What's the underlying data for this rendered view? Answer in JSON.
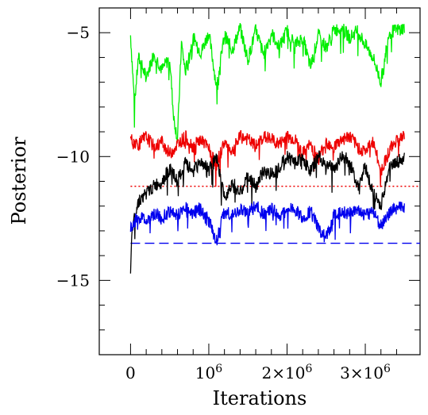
{
  "chart_data": {
    "type": "line",
    "xlabel": "Iterations",
    "ylabel": "Posterior",
    "xlim": [
      -400000,
      3700000
    ],
    "ylim": [
      -18,
      -4
    ],
    "x_ticks": [
      {
        "value": 0,
        "label": "0"
      },
      {
        "value": 1000000,
        "base": "10",
        "exp": "6"
      },
      {
        "value": 2000000,
        "base": "2×10",
        "exp": "6"
      },
      {
        "value": 3000000,
        "base": "3×10",
        "exp": "6"
      }
    ],
    "y_ticks": [
      {
        "value": -5,
        "label": "−5"
      },
      {
        "value": -10,
        "label": "−10"
      },
      {
        "value": -15,
        "label": "−15"
      }
    ],
    "series": [
      {
        "color": "#00ee00",
        "x": [
          0,
          50000,
          100000,
          200000,
          300000,
          400000,
          500000,
          550000,
          600000,
          650000,
          700000,
          800000,
          900000,
          1000000,
          1100000,
          1200000,
          1300000,
          1400000,
          1500000,
          1600000,
          1700000,
          1800000,
          1900000,
          2000000,
          2100000,
          2200000,
          2300000,
          2400000,
          2500000,
          2600000,
          2700000,
          2800000,
          2900000,
          3000000,
          3100000,
          3200000,
          3300000,
          3400000,
          3500000
        ],
        "y": [
          -5.1,
          -7.9,
          -6.0,
          -6.8,
          -5.8,
          -6.5,
          -6.0,
          -8.4,
          -9.3,
          -5.4,
          -6.6,
          -5.2,
          -5.8,
          -5.0,
          -7.2,
          -5.1,
          -5.7,
          -4.8,
          -6.1,
          -4.9,
          -5.9,
          -5.0,
          -5.6,
          -4.9,
          -5.5,
          -5.2,
          -6.4,
          -5.1,
          -5.6,
          -4.9,
          -4.8,
          -5.2,
          -4.9,
          -5.5,
          -6.0,
          -7.0,
          -5.0,
          -4.9,
          -4.8
        ]
      },
      {
        "color": "#ee0000",
        "x": [
          0,
          100000,
          200000,
          300000,
          400000,
          500000,
          600000,
          700000,
          800000,
          900000,
          1000000,
          1100000,
          1200000,
          1300000,
          1400000,
          1500000,
          1600000,
          1700000,
          1800000,
          1900000,
          2000000,
          2100000,
          2200000,
          2300000,
          2400000,
          2500000,
          2600000,
          2700000,
          2800000,
          2900000,
          3000000,
          3100000,
          3200000,
          3300000,
          3400000,
          3500000
        ],
        "y": [
          -9.3,
          -9.5,
          -9.2,
          -9.6,
          -9.4,
          -9.9,
          -9.5,
          -9.2,
          -9.6,
          -9.3,
          -9.7,
          -10.3,
          -9.4,
          -9.8,
          -9.2,
          -9.3,
          -9.6,
          -9.2,
          -9.3,
          -9.5,
          -9.2,
          -9.3,
          -9.9,
          -9.5,
          -10.1,
          -9.4,
          -9.6,
          -9.3,
          -9.2,
          -9.6,
          -9.8,
          -9.4,
          -10.6,
          -9.8,
          -9.3,
          -9.2
        ]
      },
      {
        "color": "#000000",
        "x": [
          0,
          20000,
          50000,
          100000,
          200000,
          300000,
          400000,
          500000,
          600000,
          700000,
          800000,
          900000,
          1000000,
          1100000,
          1200000,
          1300000,
          1400000,
          1500000,
          1600000,
          1700000,
          1800000,
          1900000,
          2000000,
          2100000,
          2200000,
          2300000,
          2400000,
          2500000,
          2600000,
          2700000,
          2800000,
          2900000,
          3000000,
          3100000,
          3200000,
          3300000,
          3400000,
          3500000
        ],
        "y": [
          -14.5,
          -13.0,
          -12.5,
          -11.8,
          -11.5,
          -11.2,
          -11.0,
          -10.5,
          -11.0,
          -10.3,
          -10.6,
          -10.2,
          -10.5,
          -10.1,
          -11.7,
          -11.0,
          -11.5,
          -10.8,
          -11.2,
          -10.6,
          -10.7,
          -10.4,
          -10.0,
          -10.2,
          -10.1,
          -10.6,
          -10.0,
          -10.3,
          -10.5,
          -10.0,
          -10.2,
          -11.2,
          -10.4,
          -11.5,
          -12.0,
          -10.5,
          -10.2,
          -10.1
        ]
      },
      {
        "color": "#0000ee",
        "x": [
          0,
          100000,
          200000,
          300000,
          400000,
          500000,
          600000,
          700000,
          800000,
          900000,
          1000000,
          1100000,
          1200000,
          1300000,
          1400000,
          1500000,
          1600000,
          1700000,
          1800000,
          1900000,
          2000000,
          2100000,
          2200000,
          2300000,
          2400000,
          2500000,
          2600000,
          2700000,
          2800000,
          2900000,
          3000000,
          3100000,
          3200000,
          3300000,
          3400000,
          3500000
        ],
        "y": [
          -12.9,
          -12.4,
          -12.6,
          -12.3,
          -12.5,
          -12.2,
          -12.4,
          -12.0,
          -12.3,
          -12.1,
          -12.6,
          -13.4,
          -12.2,
          -12.4,
          -12.1,
          -12.3,
          -12.0,
          -12.3,
          -12.1,
          -12.4,
          -12.2,
          -12.1,
          -12.5,
          -12.2,
          -12.9,
          -13.3,
          -12.4,
          -12.2,
          -12.3,
          -12.1,
          -12.4,
          -12.2,
          -12.8,
          -12.3,
          -12.1,
          -12.0
        ]
      }
    ],
    "reference_lines": [
      {
        "y": -11.2,
        "color": "#ee0000",
        "style": "dotted"
      },
      {
        "y": -13.5,
        "color": "#0000ee",
        "style": "dashed"
      }
    ]
  }
}
